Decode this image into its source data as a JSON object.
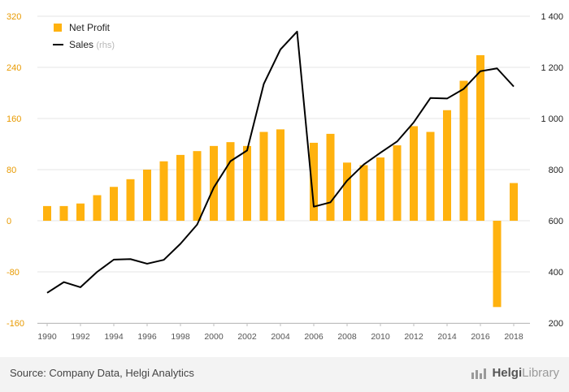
{
  "chart_data": {
    "type": "bar+line",
    "x": [
      1990,
      1991,
      1992,
      1993,
      1994,
      1995,
      1996,
      1997,
      1998,
      1999,
      2000,
      2001,
      2002,
      2003,
      2004,
      2005,
      2006,
      2007,
      2008,
      2009,
      2010,
      2011,
      2012,
      2013,
      2014,
      2015,
      2016,
      2017,
      2018
    ],
    "x_tick_labels": [
      "1990",
      "1992",
      "1994",
      "1996",
      "1998",
      "2000",
      "2002",
      "2004",
      "2006",
      "2008",
      "2010",
      "2012",
      "2014",
      "2016",
      "2018"
    ],
    "series": [
      {
        "name": "Net Profit",
        "type": "bar",
        "axis": "left",
        "color": "#FFB20F",
        "values": [
          23,
          23,
          27,
          40,
          53,
          65,
          80,
          93,
          103,
          109,
          117,
          123,
          117,
          139,
          143,
          null,
          122,
          136,
          91,
          87,
          99,
          118,
          148,
          139,
          173,
          219,
          259,
          -135,
          59
        ]
      },
      {
        "name": "Sales",
        "name_suffix": "(rhs)",
        "type": "line",
        "axis": "right",
        "color": "#000000",
        "values": [
          318,
          360,
          340,
          400,
          448,
          450,
          432,
          447,
          510,
          585,
          730,
          833,
          875,
          1135,
          1270,
          1340,
          655,
          672,
          757,
          820,
          866,
          910,
          985,
          1080,
          1078,
          1116,
          1185,
          1196,
          1125
        ]
      }
    ],
    "left_axis": {
      "ylim": [
        -160,
        320
      ],
      "ticks": [
        "320",
        "240",
        "160",
        "80",
        "0",
        "-80",
        "-160"
      ]
    },
    "right_axis": {
      "ylim": [
        200,
        1400
      ],
      "ticks": [
        "1 400",
        "1 200",
        "1 000",
        "800",
        "600",
        "400",
        "200"
      ]
    },
    "grid": true,
    "legend_position": "top-left"
  },
  "legend": {
    "net_profit_label": "Net Profit",
    "sales_label": "Sales",
    "sales_suffix": "(rhs)"
  },
  "footer": {
    "source": "Source: Company Data, Helgi Analytics",
    "brand_main": "Helgi",
    "brand_sub": "Library"
  }
}
